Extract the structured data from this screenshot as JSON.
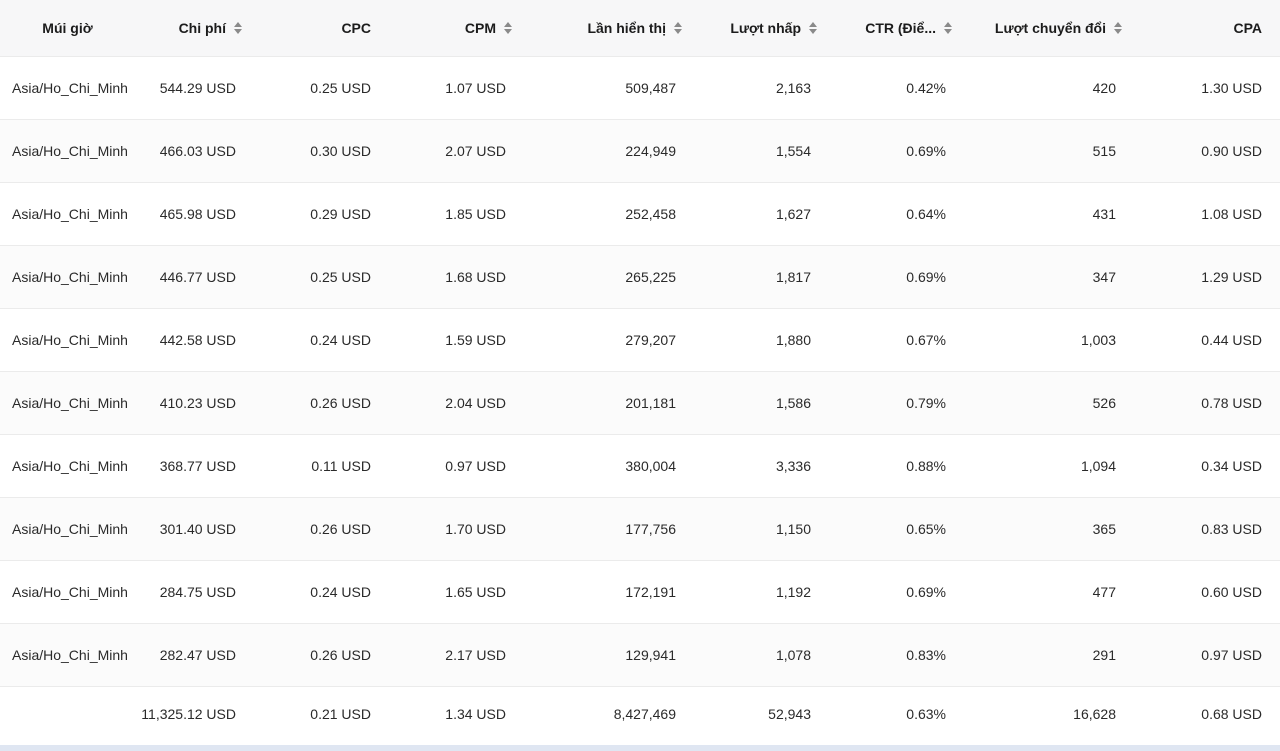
{
  "table": {
    "headers": [
      {
        "label": "Múi giờ",
        "sortable": false
      },
      {
        "label": "Chi phí",
        "sortable": true
      },
      {
        "label": "CPC",
        "sortable": false
      },
      {
        "label": "CPM",
        "sortable": true
      },
      {
        "label": "Lần hiển thị",
        "sortable": true
      },
      {
        "label": "Lượt nhấp",
        "sortable": true
      },
      {
        "label": "CTR (Điể...",
        "sortable": true
      },
      {
        "label": "Lượt chuyển đổi",
        "sortable": true
      },
      {
        "label": "CPA",
        "sortable": false
      }
    ],
    "rows": [
      [
        "Asia/Ho_Chi_Minh",
        "544.29 USD",
        "0.25 USD",
        "1.07 USD",
        "509,487",
        "2,163",
        "0.42%",
        "420",
        "1.30 USD"
      ],
      [
        "Asia/Ho_Chi_Minh",
        "466.03 USD",
        "0.30 USD",
        "2.07 USD",
        "224,949",
        "1,554",
        "0.69%",
        "515",
        "0.90 USD"
      ],
      [
        "Asia/Ho_Chi_Minh",
        "465.98 USD",
        "0.29 USD",
        "1.85 USD",
        "252,458",
        "1,627",
        "0.64%",
        "431",
        "1.08 USD"
      ],
      [
        "Asia/Ho_Chi_Minh",
        "446.77 USD",
        "0.25 USD",
        "1.68 USD",
        "265,225",
        "1,817",
        "0.69%",
        "347",
        "1.29 USD"
      ],
      [
        "Asia/Ho_Chi_Minh",
        "442.58 USD",
        "0.24 USD",
        "1.59 USD",
        "279,207",
        "1,880",
        "0.67%",
        "1,003",
        "0.44 USD"
      ],
      [
        "Asia/Ho_Chi_Minh",
        "410.23 USD",
        "0.26 USD",
        "2.04 USD",
        "201,181",
        "1,586",
        "0.79%",
        "526",
        "0.78 USD"
      ],
      [
        "Asia/Ho_Chi_Minh",
        "368.77 USD",
        "0.11 USD",
        "0.97 USD",
        "380,004",
        "3,336",
        "0.88%",
        "1,094",
        "0.34 USD"
      ],
      [
        "Asia/Ho_Chi_Minh",
        "301.40 USD",
        "0.26 USD",
        "1.70 USD",
        "177,756",
        "1,150",
        "0.65%",
        "365",
        "0.83 USD"
      ],
      [
        "Asia/Ho_Chi_Minh",
        "284.75 USD",
        "0.24 USD",
        "1.65 USD",
        "172,191",
        "1,192",
        "0.69%",
        "477",
        "0.60 USD"
      ],
      [
        "Asia/Ho_Chi_Minh",
        "282.47 USD",
        "0.26 USD",
        "2.17 USD",
        "129,941",
        "1,078",
        "0.83%",
        "291",
        "0.97 USD"
      ]
    ],
    "totals": [
      "",
      "11,325.12 USD",
      "0.21 USD",
      "1.34 USD",
      "8,427,469",
      "52,943",
      "0.63%",
      "16,628",
      "0.68 USD"
    ]
  }
}
